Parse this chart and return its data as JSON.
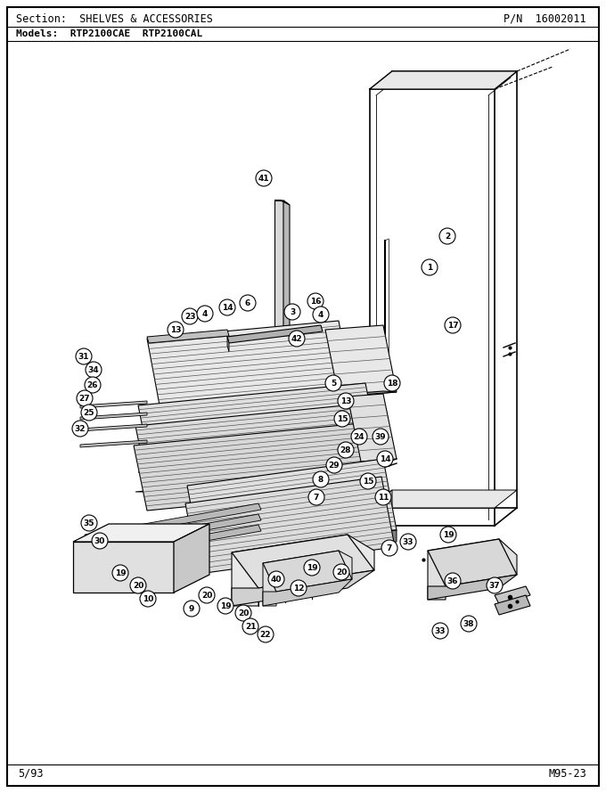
{
  "title_section": "Section:  SHELVES & ACCESSORIES",
  "title_pn": "P/N  16002011",
  "title_models": "Models:  RTP2100CAE  RTP2100CAL",
  "footer_left": "5/93",
  "footer_right": "M95-23",
  "bg_color": "#ffffff",
  "border_color": "#000000",
  "text_color": "#000000",
  "fig_width": 6.8,
  "fig_height": 8.9,
  "dpi": 100
}
